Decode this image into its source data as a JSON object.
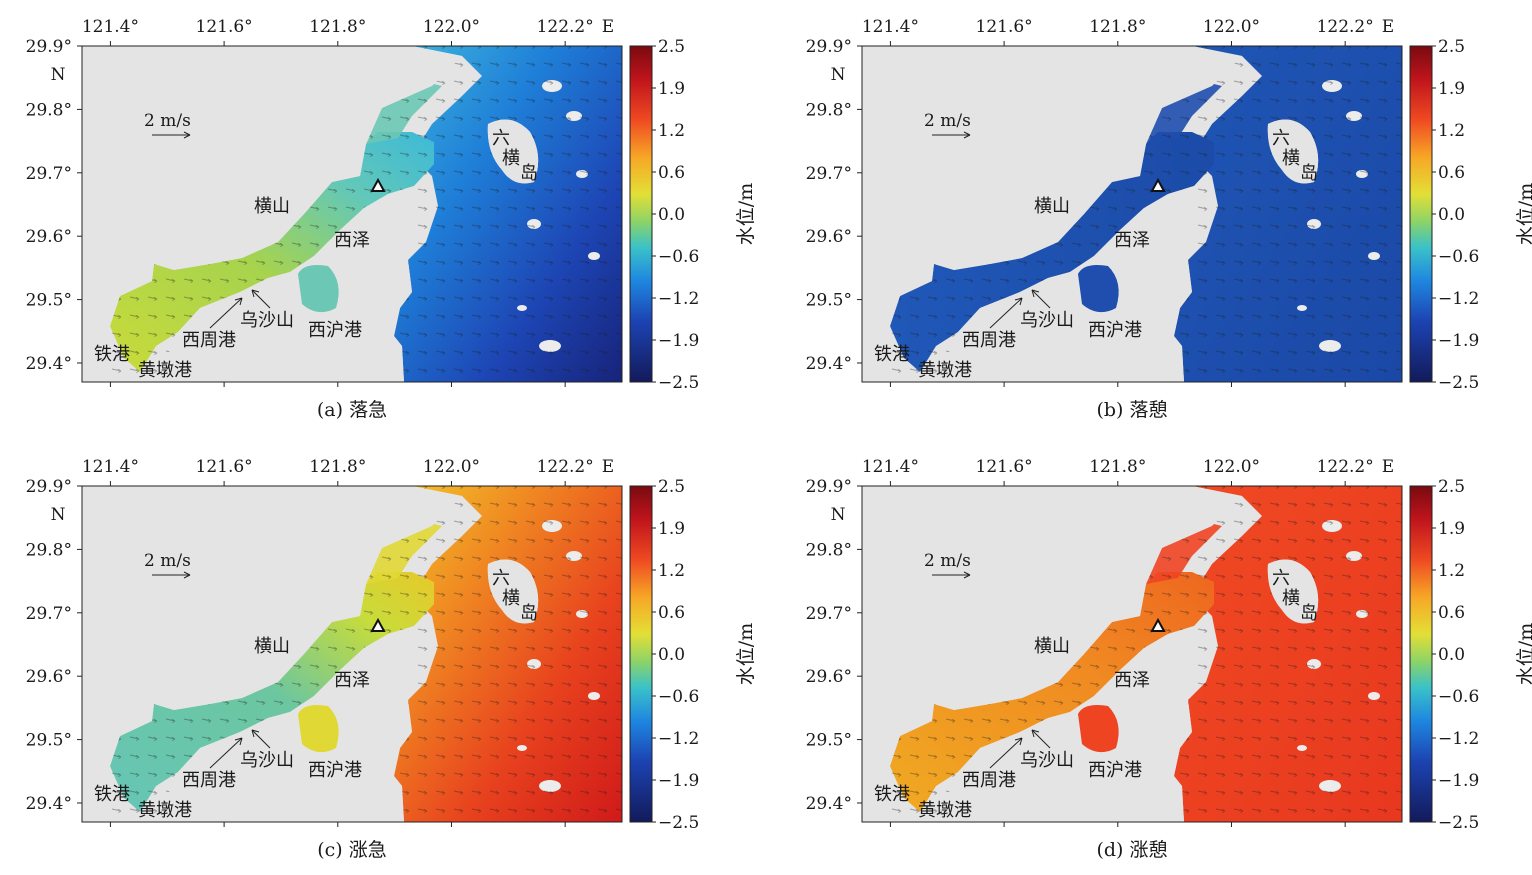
{
  "panels": [
    {
      "id": "a",
      "caption": "(a) 落急",
      "water_level_shade": "#5fd0c8",
      "open_sea": "deep-blue",
      "color_mode": "gradient_low"
    },
    {
      "id": "b",
      "caption": "(b) 落憩",
      "water_level_shade": "#1f4aa8",
      "open_sea": "blue",
      "color_mode": "uniform_low"
    },
    {
      "id": "c",
      "caption": "(c) 涨急",
      "water_level_shade": "#6dc7b3",
      "open_sea": "red",
      "color_mode": "gradient_high"
    },
    {
      "id": "d",
      "caption": "(d) 涨憩",
      "water_level_shade": "#f0a020",
      "open_sea": "red",
      "color_mode": "uniform_high"
    }
  ],
  "axes": {
    "lon_ticks": [
      "121.4°",
      "121.6°",
      "121.8°",
      "122.0°",
      "122.2°"
    ],
    "lon_end_label": "E",
    "lat_ticks": [
      "29.9°",
      "29.8°",
      "29.7°",
      "29.6°",
      "29.5°",
      "29.4°"
    ],
    "lat_end_label": "N",
    "lon_range": [
      121.35,
      122.3
    ],
    "lat_range": [
      29.37,
      29.9
    ]
  },
  "scale_arrow": {
    "label": "2 m/s"
  },
  "colorbar": {
    "label": "水位/m",
    "ticks": [
      "2.5",
      "1.9",
      "1.2",
      "0.6",
      "0.0",
      "−0.6",
      "−1.2",
      "−1.9",
      "−2.5"
    ],
    "range": [
      -2.5,
      2.5
    ],
    "colors": [
      "#7a0a10",
      "#d42a20",
      "#f06c20",
      "#f7b52a",
      "#d8df3a",
      "#7fd06a",
      "#36c0d8",
      "#1e7ad8",
      "#1b3aa0",
      "#121a5e"
    ]
  },
  "places": {
    "liuheng": [
      "六",
      "横",
      "岛"
    ],
    "hengshan": "横山",
    "xize": "西泽",
    "wushashan": "乌沙山",
    "xizhougang": "西周港",
    "xihugang": "西沪港",
    "tiegang": "铁港",
    "huangdungang": "黄墩港"
  },
  "station_marker": "triangle"
}
